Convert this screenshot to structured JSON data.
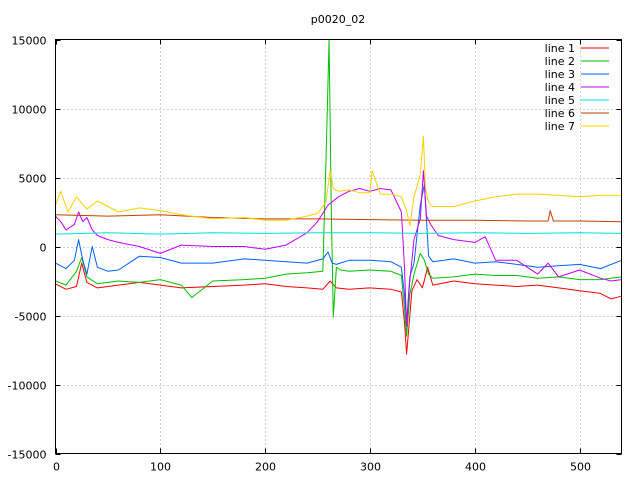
{
  "chart_data": {
    "type": "line",
    "title": "p0020_02",
    "xlabel": "",
    "ylabel": "",
    "xlim": [
      0,
      540
    ],
    "ylim": [
      -15000,
      15000
    ],
    "xticks": [
      0,
      100,
      200,
      300,
      400,
      500
    ],
    "yticks": [
      -15000,
      -10000,
      -5000,
      0,
      5000,
      10000,
      15000
    ],
    "grid": true,
    "legend_position": "top-right",
    "series": [
      {
        "name": "line 1",
        "color": "#ff0000",
        "x": [
          0,
          10,
          20,
          25,
          30,
          40,
          60,
          80,
          100,
          120,
          150,
          180,
          200,
          220,
          240,
          255,
          262,
          268,
          280,
          300,
          320,
          330,
          333,
          335,
          337,
          340,
          345,
          350,
          355,
          360,
          380,
          400,
          420,
          440,
          460,
          480,
          500,
          520,
          530,
          540
        ],
        "y": [
          -2700,
          -3100,
          -2900,
          -1200,
          -2600,
          -3000,
          -2800,
          -2600,
          -2800,
          -3000,
          -2900,
          -2800,
          -2700,
          -2900,
          -3000,
          -3100,
          -2500,
          -3000,
          -3100,
          -3000,
          -3100,
          -3300,
          -5500,
          -7800,
          -6000,
          -3200,
          -2400,
          -3000,
          -1500,
          -2800,
          -2500,
          -2700,
          -2800,
          -2900,
          -2800,
          -3000,
          -3200,
          -3400,
          -3800,
          -3600
        ]
      },
      {
        "name": "line 2",
        "color": "#00c000",
        "x": [
          0,
          10,
          20,
          25,
          30,
          40,
          60,
          80,
          100,
          120,
          130,
          150,
          180,
          200,
          220,
          240,
          255,
          258,
          261,
          263,
          265,
          268,
          272,
          280,
          300,
          320,
          330,
          333,
          335,
          338,
          342,
          348,
          352,
          356,
          360,
          380,
          400,
          420,
          440,
          460,
          480,
          500,
          520,
          540
        ],
        "y": [
          -2500,
          -2800,
          -1800,
          -800,
          -2200,
          -2700,
          -2500,
          -2600,
          -2400,
          -2800,
          -3700,
          -2500,
          -2400,
          -2300,
          -2000,
          -1900,
          -1800,
          6000,
          15000,
          3000,
          -5100,
          -1500,
          -1700,
          -1800,
          -1700,
          -1800,
          -2100,
          -4500,
          -6500,
          -3500,
          -2000,
          -500,
          -1000,
          -2000,
          -2300,
          -2200,
          -2000,
          -2100,
          -2100,
          -2300,
          -2200,
          -2400,
          -2400,
          -2200
        ]
      },
      {
        "name": "line 3",
        "color": "#0060ff",
        "x": [
          0,
          10,
          18,
          22,
          26,
          30,
          35,
          40,
          50,
          60,
          80,
          100,
          120,
          150,
          180,
          200,
          220,
          240,
          255,
          260,
          264,
          268,
          280,
          300,
          320,
          330,
          333,
          335,
          338,
          342,
          348,
          352,
          356,
          360,
          380,
          400,
          420,
          440,
          460,
          480,
          500,
          520,
          540
        ],
        "y": [
          -1200,
          -1600,
          -1000,
          500,
          -1000,
          -2000,
          0,
          -1500,
          -1800,
          -1700,
          -700,
          -800,
          -1200,
          -1200,
          -900,
          -1000,
          -1100,
          -1200,
          -900,
          -400,
          -1200,
          -1300,
          -1000,
          -1000,
          -1100,
          -1500,
          -3500,
          -5500,
          -2200,
          -1200,
          3000,
          4500,
          -700,
          -1100,
          -900,
          -1200,
          -1100,
          -1300,
          -1500,
          -1400,
          -1300,
          -1600,
          -1000
        ]
      },
      {
        "name": "line 4",
        "color": "#c000ff",
        "x": [
          0,
          5,
          10,
          18,
          22,
          26,
          30,
          35,
          40,
          50,
          60,
          80,
          100,
          120,
          150,
          180,
          200,
          220,
          240,
          250,
          260,
          270,
          280,
          290,
          300,
          310,
          320,
          330,
          333,
          335,
          338,
          342,
          348,
          351,
          354,
          358,
          365,
          380,
          400,
          410,
          420,
          440,
          460,
          470,
          480,
          500,
          520,
          530,
          540
        ],
        "y": [
          2200,
          1800,
          1200,
          1600,
          2500,
          1800,
          2100,
          1200,
          800,
          500,
          300,
          0,
          -500,
          100,
          0,
          0,
          -200,
          100,
          1000,
          1800,
          3000,
          3600,
          4000,
          4200,
          4000,
          4200,
          4100,
          2500,
          -1500,
          -5800,
          -2500,
          500,
          2000,
          5500,
          2200,
          1600,
          800,
          500,
          300,
          700,
          -1000,
          -1000,
          -2000,
          -1200,
          -2200,
          -1700,
          -2300,
          -2500,
          -2400
        ]
      },
      {
        "name": "line 5",
        "color": "#00e0e0",
        "x": [
          0,
          50,
          100,
          150,
          200,
          250,
          300,
          350,
          400,
          450,
          500,
          540
        ],
        "y": [
          900,
          1000,
          900,
          1000,
          950,
          1000,
          1000,
          950,
          1000,
          950,
          1000,
          950
        ]
      },
      {
        "name": "line 6",
        "color": "#c04000",
        "x": [
          0,
          50,
          100,
          150,
          200,
          250,
          300,
          350,
          400,
          450,
          470,
          472,
          475,
          480,
          500,
          540
        ],
        "y": [
          2300,
          2200,
          2300,
          2100,
          2000,
          2000,
          1950,
          1900,
          1900,
          1850,
          1850,
          2600,
          1850,
          1850,
          1850,
          1800
        ]
      },
      {
        "name": "line 7",
        "color": "#ffd000",
        "x": [
          0,
          5,
          12,
          20,
          30,
          40,
          60,
          80,
          100,
          120,
          150,
          180,
          200,
          220,
          240,
          250,
          258,
          262,
          265,
          270,
          280,
          290,
          300,
          302,
          310,
          320,
          330,
          335,
          338,
          342,
          348,
          351,
          353,
          356,
          360,
          380,
          400,
          420,
          440,
          460,
          480,
          500,
          520,
          540
        ],
        "y": [
          3000,
          4000,
          2500,
          3600,
          2700,
          3300,
          2500,
          2800,
          2600,
          2300,
          2000,
          2100,
          1900,
          1900,
          2200,
          2400,
          3200,
          5500,
          4200,
          4000,
          4100,
          3900,
          3900,
          5500,
          3800,
          3800,
          3600,
          2600,
          1500,
          3600,
          5200,
          8000,
          4200,
          3200,
          2900,
          2900,
          3300,
          3600,
          3800,
          3800,
          3700,
          3600,
          3700,
          3700
        ]
      }
    ]
  }
}
